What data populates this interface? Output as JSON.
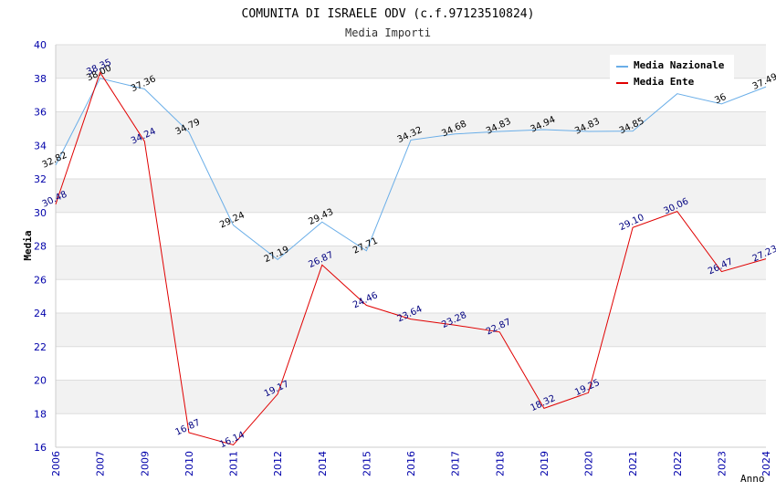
{
  "chart_data": {
    "type": "line",
    "title": "COMUNITA DI ISRAELE ODV (c.f.97123510824)",
    "subtitle": "Media Importi",
    "xlabel": "Anno",
    "ylabel": "Media",
    "ylim": [
      16,
      40
    ],
    "yticks": [
      16,
      18,
      20,
      22,
      24,
      26,
      28,
      30,
      32,
      34,
      36,
      38,
      40
    ],
    "categories": [
      "2006",
      "2007",
      "2009",
      "2010",
      "2011",
      "2012",
      "2014",
      "2015",
      "2016",
      "2017",
      "2018",
      "2019",
      "2020",
      "2021",
      "2022",
      "2023",
      "2024"
    ],
    "grid": "horizontal-bands",
    "legend_position": "top-right",
    "series": [
      {
        "name": "Media Nazionale",
        "color": "#6aaee8",
        "label_color": "#000000",
        "values": [
          32.82,
          38.0,
          37.36,
          34.79,
          29.24,
          27.19,
          29.43,
          27.71,
          34.32,
          34.68,
          34.83,
          34.94,
          34.83,
          34.85,
          37.08,
          36.47,
          37.49
        ],
        "labels": [
          "32.82",
          "38.00",
          "37.36",
          "34.79",
          "29.24",
          "27.19",
          "29.43",
          "27.71",
          "34.32",
          "34.68",
          "34.83",
          "34.94",
          "34.83",
          "34.85",
          "",
          "36",
          "37.49"
        ]
      },
      {
        "name": "Media Ente",
        "color": "#e00000",
        "label_color": "#000080",
        "values": [
          30.48,
          38.35,
          34.24,
          16.87,
          16.14,
          19.17,
          26.87,
          24.46,
          23.64,
          23.28,
          22.87,
          18.32,
          19.25,
          29.1,
          30.06,
          26.47,
          27.23
        ],
        "labels": [
          "30.48",
          "38.35",
          "34.24",
          "16.87",
          "16.14",
          "19.17",
          "26.87",
          "24.46",
          "23.64",
          "23.28",
          "22.87",
          "18.32",
          "19.25",
          "29.10",
          "30.06",
          "26.47",
          "27.23"
        ]
      }
    ]
  }
}
